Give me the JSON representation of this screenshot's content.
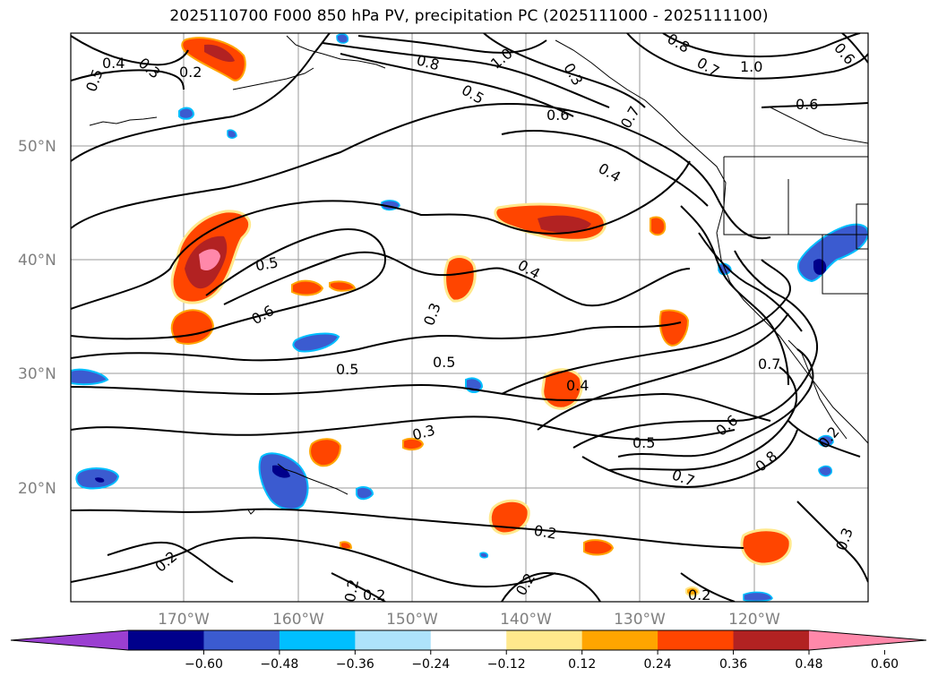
{
  "title": "2025110700 F000 850 hPa PV, precipitation PC (2025111000 - 2025111100)",
  "map": {
    "lat_ticks": [
      "50°N",
      "40°N",
      "30°N",
      "20°N"
    ],
    "lon_ticks": [
      "170°W",
      "160°W",
      "150°W",
      "140°W",
      "130°W",
      "120°W"
    ],
    "contour_labels": [
      "0.5",
      "0.4",
      "0.3",
      "0.2",
      "1.0",
      "0.8",
      "0.5",
      "0.3",
      "0.6",
      "0.7",
      "0.8",
      "0.7",
      "1.0",
      "0.6",
      "0.6",
      "0.4",
      "0.5",
      "0.6",
      "0.4",
      "0.3",
      "0.5",
      "0.5",
      "0.4",
      "0.3",
      "0.5",
      "0.6",
      "0.7",
      "0.7",
      "0.8",
      "0.2",
      "0.2",
      "0.2",
      "0.2",
      "0.2",
      "0.2",
      "0.3"
    ]
  },
  "colorbar": {
    "ticks": [
      "−0.60",
      "−0.48",
      "−0.36",
      "−0.24",
      "−0.12",
      "0.12",
      "0.24",
      "0.36",
      "0.48",
      "0.60"
    ],
    "colors": [
      "#9b3fd1",
      "#00008b",
      "#3b5bd0",
      "#00bfff",
      "#aee3fb",
      "#ffffff",
      "#ffe88c",
      "#ffa500",
      "#ff4500",
      "#b22222",
      "#ff88aa"
    ]
  }
}
